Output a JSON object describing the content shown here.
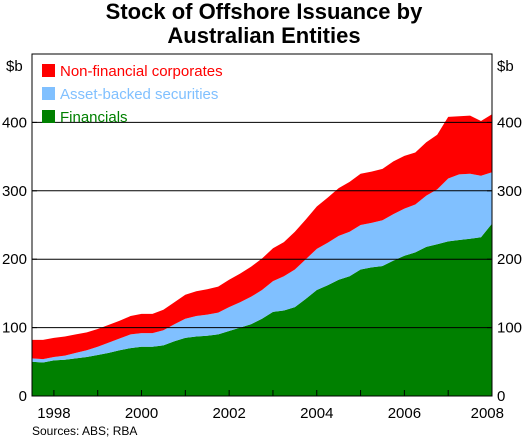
{
  "chart_data": {
    "type": "area",
    "stacked": true,
    "title_line1": "Stock of Offshore Issuance by",
    "title_line2": "Australian Entities",
    "ylabel_left": "$b",
    "ylabel_right": "$b",
    "ylim": [
      0,
      500
    ],
    "yticks": [
      0,
      100,
      200,
      300,
      400
    ],
    "xlim": [
      1997.5,
      2008.0
    ],
    "xticks": [
      1998,
      2000,
      2002,
      2004,
      2006,
      2008
    ],
    "grid": "horizontal",
    "legend_position": "top-left",
    "source": "Sources: ABS; RBA",
    "x": [
      1997.5,
      1997.75,
      1998.0,
      1998.25,
      1998.5,
      1998.75,
      1999.0,
      1999.25,
      1999.5,
      1999.75,
      2000.0,
      2000.25,
      2000.5,
      2000.75,
      2001.0,
      2001.25,
      2001.5,
      2001.75,
      2002.0,
      2002.25,
      2002.5,
      2002.75,
      2003.0,
      2003.25,
      2003.5,
      2003.75,
      2004.0,
      2004.25,
      2004.5,
      2004.75,
      2005.0,
      2005.25,
      2005.5,
      2005.75,
      2006.0,
      2006.25,
      2006.5,
      2006.75,
      2007.0,
      2007.25,
      2007.5,
      2007.75,
      2008.0
    ],
    "series": [
      {
        "name": "Financials",
        "color": "#008000",
        "values": [
          50,
          49,
          52,
          53,
          55,
          57,
          60,
          63,
          67,
          70,
          72,
          72,
          74,
          80,
          85,
          87,
          88,
          90,
          95,
          100,
          105,
          113,
          123,
          125,
          130,
          142,
          155,
          162,
          170,
          175,
          185,
          188,
          190,
          198,
          205,
          210,
          218,
          222,
          226,
          228,
          230,
          232,
          252
        ]
      },
      {
        "name": "Asset-backed securities",
        "color": "#80C0FF",
        "values": [
          5,
          5,
          5,
          6,
          8,
          10,
          12,
          15,
          17,
          20,
          20,
          20,
          22,
          25,
          28,
          30,
          31,
          32,
          35,
          37,
          40,
          42,
          45,
          50,
          55,
          58,
          60,
          62,
          64,
          65,
          65,
          65,
          67,
          68,
          69,
          70,
          75,
          80,
          92,
          96,
          95,
          90,
          75
        ]
      },
      {
        "name": "Non-financial corporates",
        "color": "#FF0000",
        "values": [
          27,
          28,
          28,
          28,
          27,
          26,
          26,
          26,
          26,
          27,
          28,
          28,
          30,
          32,
          35,
          36,
          37,
          38,
          40,
          42,
          44,
          46,
          48,
          50,
          55,
          58,
          62,
          66,
          70,
          73,
          75,
          75,
          75,
          77,
          77,
          76,
          78,
          80,
          90,
          85,
          85,
          80,
          85
        ]
      }
    ]
  }
}
